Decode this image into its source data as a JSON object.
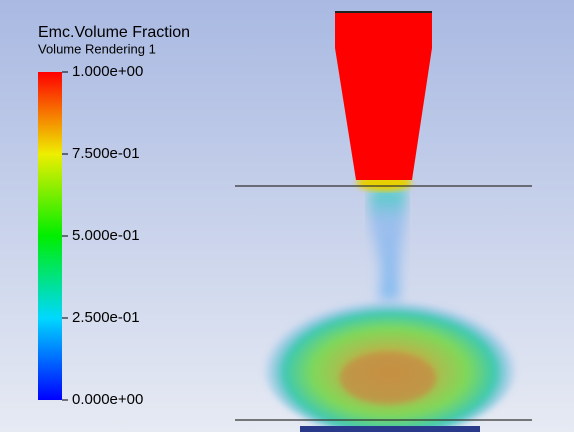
{
  "legend": {
    "title": "Emc.Volume Fraction",
    "subtitle": "Volume Rendering 1",
    "ticks": [
      "1.000e+00",
      "7.500e-01",
      "5.000e-01",
      "2.500e-01",
      "0.000e+00"
    ]
  }
}
